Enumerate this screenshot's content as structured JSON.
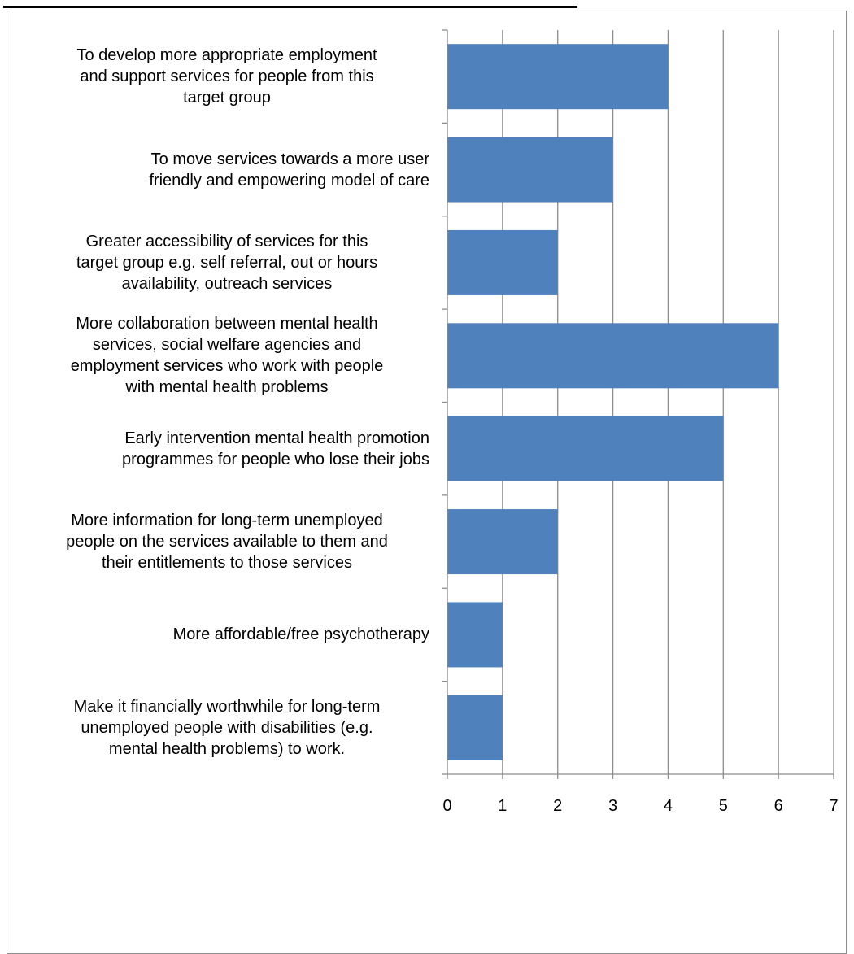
{
  "chart_data": {
    "type": "bar",
    "orientation": "horizontal",
    "categories": [
      "To develop more appropriate employment and support services for people from this target group",
      "To move services towards a more user friendly and empowering model of care",
      "Greater accessibility of services for this target group e.g. self referral, out or hours availability, outreach services",
      "More collaboration between mental health services, social welfare agencies and employment services who work with people with mental health problems",
      "Early intervention mental health promotion programmes for people who lose their jobs",
      "More information for long-term unemployed people on the services available to them and their entitlements to those services",
      "More affordable/free psychotherapy",
      "Make it financially worthwhile for long-term unemployed people with disabilities (e.g. mental health problems) to work."
    ],
    "values": [
      4,
      3,
      2,
      6,
      5,
      2,
      1,
      1
    ],
    "xlim": [
      0,
      7
    ],
    "xticks": [
      "0",
      "1",
      "2",
      "3",
      "4",
      "5",
      "6",
      "7"
    ],
    "grid": "vertical",
    "legend": "none",
    "bar_color": "#4F81BD",
    "title": "",
    "xlabel": "",
    "ylabel": ""
  }
}
